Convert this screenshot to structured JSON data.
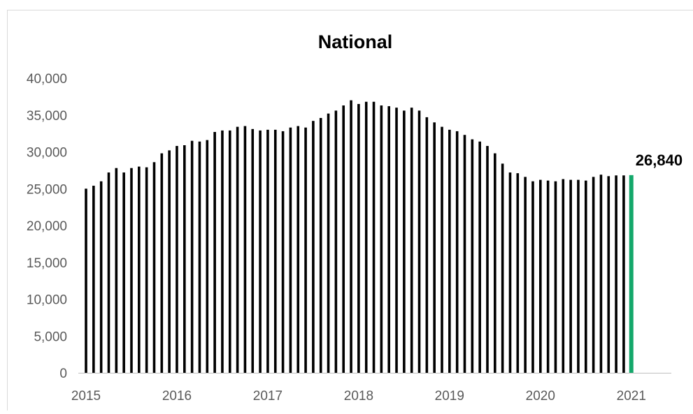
{
  "chart_data": {
    "type": "bar",
    "title": "National",
    "xlabel": "",
    "ylabel": "",
    "ylim": [
      0,
      40000
    ],
    "yticks": [
      0,
      5000,
      10000,
      15000,
      20000,
      25000,
      30000,
      35000,
      40000
    ],
    "ytick_labels": [
      "0",
      "5,000",
      "10,000",
      "15,000",
      "20,000",
      "25,000",
      "30,000",
      "35,000",
      "40,000"
    ],
    "xtick_labels": [
      "2015",
      "2016",
      "2017",
      "2018",
      "2019",
      "2020",
      "2021"
    ],
    "categories": [
      "2015-01",
      "2015-02",
      "2015-03",
      "2015-04",
      "2015-05",
      "2015-06",
      "2015-07",
      "2015-08",
      "2015-09",
      "2015-10",
      "2015-11",
      "2015-12",
      "2016-01",
      "2016-02",
      "2016-03",
      "2016-04",
      "2016-05",
      "2016-06",
      "2016-07",
      "2016-08",
      "2016-09",
      "2016-10",
      "2016-11",
      "2016-12",
      "2017-01",
      "2017-02",
      "2017-03",
      "2017-04",
      "2017-05",
      "2017-06",
      "2017-07",
      "2017-08",
      "2017-09",
      "2017-10",
      "2017-11",
      "2017-12",
      "2018-01",
      "2018-02",
      "2018-03",
      "2018-04",
      "2018-05",
      "2018-06",
      "2018-07",
      "2018-08",
      "2018-09",
      "2018-10",
      "2018-11",
      "2018-12",
      "2019-01",
      "2019-02",
      "2019-03",
      "2019-04",
      "2019-05",
      "2019-06",
      "2019-07",
      "2019-08",
      "2019-09",
      "2019-10",
      "2019-11",
      "2019-12",
      "2020-01",
      "2020-02",
      "2020-03",
      "2020-04",
      "2020-05",
      "2020-06",
      "2020-07",
      "2020-08",
      "2020-09",
      "2020-10",
      "2020-11",
      "2020-12",
      "2021-01"
    ],
    "values": [
      25000,
      25400,
      26000,
      27200,
      27800,
      27200,
      27800,
      28000,
      27900,
      28600,
      29800,
      30200,
      30800,
      30900,
      31500,
      31400,
      31600,
      32700,
      32900,
      32900,
      33400,
      33500,
      33100,
      32900,
      33000,
      33000,
      32800,
      33300,
      33500,
      33300,
      34200,
      34600,
      35200,
      35600,
      36300,
      37000,
      36500,
      36800,
      36800,
      36300,
      36200,
      36000,
      35600,
      36000,
      35600,
      34700,
      34000,
      33400,
      33000,
      32800,
      32300,
      31700,
      31400,
      30800,
      29800,
      28400,
      27200,
      27100,
      26600,
      26000,
      26200,
      26100,
      26000,
      26300,
      26200,
      26200,
      26100,
      26600,
      26900,
      26700,
      26800,
      26800,
      26840
    ],
    "bar_color": "#000000",
    "highlight_color": "#14a86b",
    "highlight_label": "26,840",
    "grid": false,
    "legend": "none"
  }
}
